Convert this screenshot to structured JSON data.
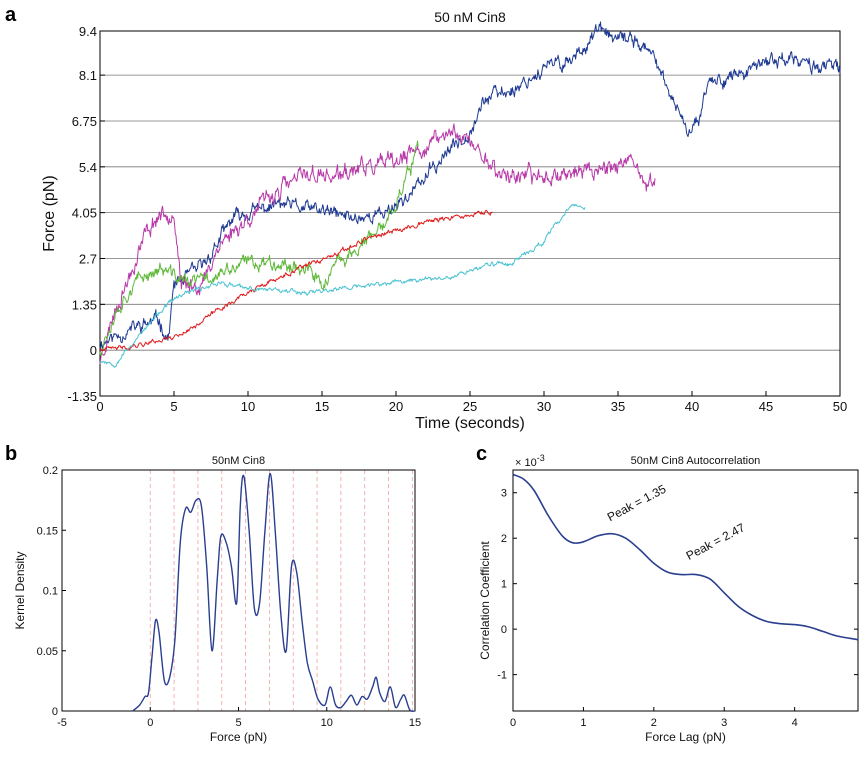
{
  "panels": {
    "a": "a",
    "b": "b",
    "c": "c"
  },
  "chart_data": [
    {
      "panel": "a",
      "type": "line",
      "title": "50 nM Cin8",
      "xlabel": "Time (seconds)",
      "ylabel": "Force (pN)",
      "xlim": [
        0,
        50
      ],
      "ylim": [
        -1.35,
        9.4
      ],
      "xticks": [
        0,
        5,
        10,
        15,
        20,
        25,
        30,
        35,
        40,
        45,
        50
      ],
      "yticks": [
        -1.35,
        0,
        1.35,
        2.7,
        4.05,
        5.4,
        6.75,
        8.1,
        9.4
      ],
      "ytick_labels": [
        "-1.35",
        "0",
        "1.35",
        "2.7",
        "4.05",
        "5.4",
        "6.75",
        "8.1",
        "9.4"
      ],
      "grid": "horizontal",
      "series": [
        {
          "color": "#1f3a93",
          "noise": 0.18,
          "seed": 11,
          "points": [
            [
              0,
              0.2
            ],
            [
              2,
              0.6
            ],
            [
              4,
              0.9
            ],
            [
              4.6,
              0.3
            ],
            [
              5,
              1.9
            ],
            [
              7,
              2.5
            ],
            [
              8,
              3.2
            ],
            [
              9,
              3.9
            ],
            [
              12,
              4.3
            ],
            [
              15,
              4.1
            ],
            [
              17,
              3.9
            ],
            [
              19,
              4.0
            ],
            [
              21,
              4.6
            ],
            [
              23,
              5.6
            ],
            [
              25,
              6.5
            ],
            [
              26,
              7.4
            ],
            [
              28,
              7.7
            ],
            [
              30,
              8.3
            ],
            [
              32,
              8.6
            ],
            [
              33.7,
              9.45
            ],
            [
              35,
              9.1
            ],
            [
              36,
              9.2
            ],
            [
              37,
              8.8
            ],
            [
              38,
              8.2
            ],
            [
              38.5,
              7.3
            ],
            [
              39,
              7.2
            ],
            [
              39.5,
              6.5
            ],
            [
              40.5,
              6.8
            ],
            [
              41,
              7.9
            ],
            [
              43,
              8.1
            ],
            [
              44,
              8.2
            ],
            [
              45,
              8.5
            ],
            [
              46,
              8.6
            ],
            [
              48,
              8.4
            ],
            [
              50,
              8.3
            ]
          ]
        },
        {
          "color": "#b83aa8",
          "noise": 0.22,
          "seed": 23,
          "points": [
            [
              0,
              -0.3
            ],
            [
              1,
              1.2
            ],
            [
              2,
              2.2
            ],
            [
              3,
              3.4
            ],
            [
              4,
              4.0
            ],
            [
              5,
              4.1
            ],
            [
              5.5,
              1.8
            ],
            [
              7,
              2.0
            ],
            [
              8,
              3.1
            ],
            [
              10,
              3.9
            ],
            [
              12,
              4.7
            ],
            [
              14,
              5.2
            ],
            [
              16,
              5.1
            ],
            [
              18,
              5.4
            ],
            [
              20,
              5.5
            ],
            [
              22,
              6.0
            ],
            [
              24,
              6.5
            ],
            [
              25,
              6.1
            ],
            [
              26,
              5.7
            ],
            [
              27,
              5.2
            ],
            [
              29,
              5.1
            ],
            [
              31,
              5.2
            ],
            [
              33,
              5.3
            ],
            [
              35,
              5.5
            ],
            [
              36,
              5.4
            ],
            [
              37,
              4.8
            ],
            [
              37.5,
              5.0
            ]
          ]
        },
        {
          "color": "#5fb83a",
          "noise": 0.18,
          "seed": 37,
          "points": [
            [
              0,
              0.0
            ],
            [
              1,
              1.1
            ],
            [
              2,
              1.8
            ],
            [
              3,
              2.2
            ],
            [
              4,
              2.4
            ],
            [
              5,
              2.2
            ],
            [
              6,
              2.0
            ],
            [
              8,
              2.2
            ],
            [
              10,
              2.6
            ],
            [
              12,
              2.6
            ],
            [
              14,
              2.4
            ],
            [
              15,
              1.9
            ],
            [
              16,
              2.5
            ],
            [
              18,
              3.2
            ],
            [
              19,
              3.5
            ],
            [
              20,
              4.4
            ],
            [
              21,
              5.4
            ],
            [
              21.5,
              6.0
            ]
          ]
        },
        {
          "color": "#e01c1c",
          "noise": 0.06,
          "seed": 41,
          "points": [
            [
              0,
              0.0
            ],
            [
              2,
              0.1
            ],
            [
              4,
              0.3
            ],
            [
              5,
              0.4
            ],
            [
              6,
              0.6
            ],
            [
              8,
              1.2
            ],
            [
              10,
              1.7
            ],
            [
              12,
              2.1
            ],
            [
              14,
              2.5
            ],
            [
              16,
              2.8
            ],
            [
              18,
              3.3
            ],
            [
              20,
              3.5
            ],
            [
              22,
              3.8
            ],
            [
              24,
              3.9
            ],
            [
              26,
              4.05
            ],
            [
              26.5,
              4.05
            ]
          ]
        },
        {
          "color": "#4cc3d1",
          "noise": 0.06,
          "seed": 53,
          "points": [
            [
              0,
              -0.3
            ],
            [
              1,
              -0.4
            ],
            [
              2,
              0.1
            ],
            [
              3,
              0.6
            ],
            [
              4,
              1.1
            ],
            [
              5,
              1.5
            ],
            [
              6,
              1.7
            ],
            [
              8,
              2.0
            ],
            [
              10,
              1.8
            ],
            [
              12,
              1.8
            ],
            [
              14,
              1.7
            ],
            [
              16,
              1.8
            ],
            [
              18,
              1.9
            ],
            [
              20,
              2.0
            ],
            [
              22,
              2.1
            ],
            [
              24,
              2.2
            ],
            [
              26,
              2.5
            ],
            [
              28,
              2.6
            ],
            [
              30,
              3.2
            ],
            [
              31,
              3.8
            ],
            [
              32,
              4.3
            ],
            [
              32.8,
              4.2
            ]
          ]
        }
      ]
    },
    {
      "panel": "b",
      "type": "line",
      "title": "50nM Cin8",
      "xlabel": "Force (pN)",
      "ylabel": "Kernel Density",
      "xlim": [
        -5,
        15
      ],
      "ylim": [
        0,
        0.2
      ],
      "xticks": [
        -5,
        0,
        5,
        10,
        15
      ],
      "yticks": [
        0,
        0.05,
        0.1,
        0.15,
        0.2
      ],
      "guide_lines_x": [
        0,
        1.35,
        2.7,
        4.05,
        5.4,
        6.75,
        8.1,
        9.45,
        10.8,
        12.15,
        13.5,
        14.85
      ],
      "guide_line_color": "#f0a0a0",
      "series": [
        {
          "color": "#2a3f8f",
          "points": [
            [
              -1,
              0
            ],
            [
              -0.6,
              0.005
            ],
            [
              -0.3,
              0.012
            ],
            [
              -0.1,
              0.015
            ],
            [
              0.1,
              0.045
            ],
            [
              0.3,
              0.075
            ],
            [
              0.5,
              0.065
            ],
            [
              0.8,
              0.025
            ],
            [
              1.1,
              0.028
            ],
            [
              1.4,
              0.06
            ],
            [
              1.7,
              0.14
            ],
            [
              2.0,
              0.168
            ],
            [
              2.3,
              0.165
            ],
            [
              2.6,
              0.175
            ],
            [
              2.9,
              0.17
            ],
            [
              3.2,
              0.12
            ],
            [
              3.5,
              0.05
            ],
            [
              3.8,
              0.11
            ],
            [
              4.0,
              0.145
            ],
            [
              4.3,
              0.14
            ],
            [
              4.6,
              0.12
            ],
            [
              4.9,
              0.09
            ],
            [
              5.1,
              0.17
            ],
            [
              5.3,
              0.195
            ],
            [
              5.6,
              0.15
            ],
            [
              5.9,
              0.085
            ],
            [
              6.2,
              0.09
            ],
            [
              6.5,
              0.15
            ],
            [
              6.8,
              0.197
            ],
            [
              7.1,
              0.145
            ],
            [
              7.4,
              0.08
            ],
            [
              7.7,
              0.05
            ],
            [
              8.0,
              0.12
            ],
            [
              8.3,
              0.115
            ],
            [
              8.6,
              0.075
            ],
            [
              8.9,
              0.04
            ],
            [
              9.2,
              0.025
            ],
            [
              9.5,
              0.01
            ],
            [
              9.9,
              0.005
            ],
            [
              10.2,
              0.02
            ],
            [
              10.5,
              0.005
            ],
            [
              10.8,
              0.003
            ],
            [
              11.1,
              0.008
            ],
            [
              11.4,
              0.013
            ],
            [
              11.7,
              0.005
            ],
            [
              12.0,
              0.012
            ],
            [
              12.3,
              0.01
            ],
            [
              12.6,
              0.02
            ],
            [
              12.8,
              0.028
            ],
            [
              13.0,
              0.015
            ],
            [
              13.3,
              0.008
            ],
            [
              13.6,
              0.02
            ],
            [
              13.9,
              0.003
            ],
            [
              14.2,
              0.01
            ],
            [
              14.4,
              0.013
            ],
            [
              14.7,
              0.001
            ],
            [
              15,
              0
            ]
          ]
        }
      ]
    },
    {
      "panel": "c",
      "type": "line",
      "title": "50nM Cin8 Autocorrelation",
      "xlabel": "Force Lag (pN)",
      "ylabel": "Correlation Coefficient",
      "exponent_label": "× 10^-3",
      "xlim": [
        0,
        4.9
      ],
      "ylim": [
        -1.8,
        3.5
      ],
      "xticks": [
        0,
        1,
        2,
        3,
        4
      ],
      "yticks": [
        -1,
        0,
        1,
        2,
        3
      ],
      "annotations": [
        {
          "text": "Peak = 1.35",
          "x": 1.35,
          "y": 2.1
        },
        {
          "text": "Peak = 2.47",
          "x": 2.47,
          "y": 1.25
        }
      ],
      "series": [
        {
          "color": "#2a3f8f",
          "points": [
            [
              0,
              3.4
            ],
            [
              0.15,
              3.3
            ],
            [
              0.3,
              3.05
            ],
            [
              0.5,
              2.5
            ],
            [
              0.7,
              2.05
            ],
            [
              0.85,
              1.9
            ],
            [
              1.0,
              1.92
            ],
            [
              1.2,
              2.05
            ],
            [
              1.4,
              2.1
            ],
            [
              1.6,
              2.0
            ],
            [
              1.8,
              1.75
            ],
            [
              2.0,
              1.45
            ],
            [
              2.2,
              1.25
            ],
            [
              2.4,
              1.2
            ],
            [
              2.6,
              1.2
            ],
            [
              2.8,
              1.1
            ],
            [
              3.0,
              0.8
            ],
            [
              3.2,
              0.5
            ],
            [
              3.4,
              0.3
            ],
            [
              3.6,
              0.17
            ],
            [
              3.8,
              0.12
            ],
            [
              4.0,
              0.1
            ],
            [
              4.2,
              0.05
            ],
            [
              4.4,
              -0.05
            ],
            [
              4.6,
              -0.15
            ],
            [
              4.9,
              -0.23
            ]
          ]
        }
      ]
    }
  ]
}
